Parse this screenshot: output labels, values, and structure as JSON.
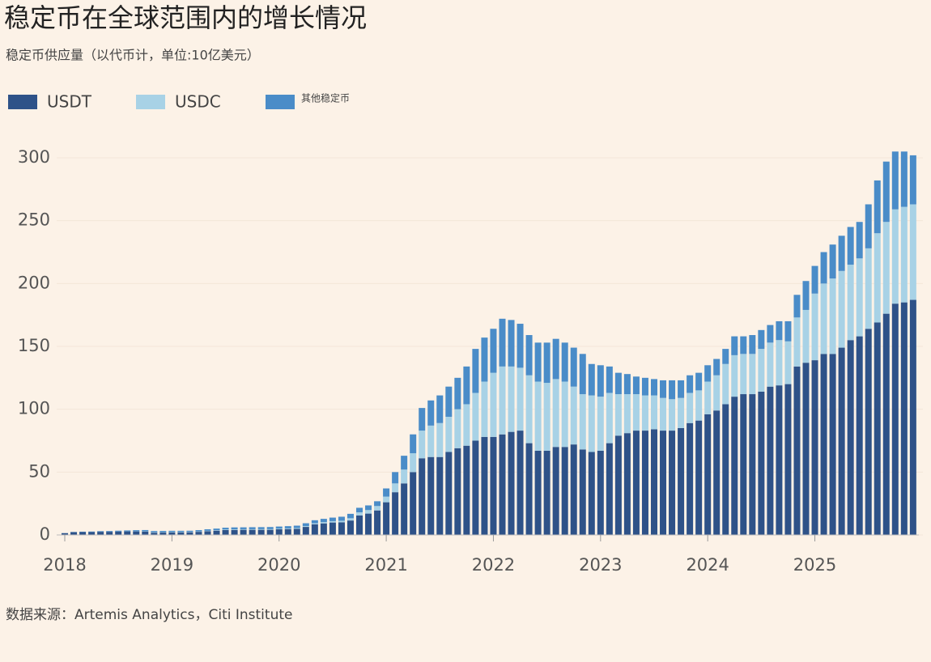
{
  "chart_data": {
    "type": "stacked_bar",
    "title": "稳定币在全球范围内的增长情况",
    "subtitle": "稳定币供应量（以代币计，单位:10亿美元）",
    "source": "数据来源：Artemis Analytics，Citi Institute",
    "categories": [
      "2018",
      null,
      null,
      null,
      null,
      null,
      null,
      null,
      null,
      null,
      null,
      null,
      "2019",
      null,
      null,
      null,
      null,
      null,
      null,
      null,
      null,
      null,
      null,
      null,
      "2020",
      null,
      null,
      null,
      null,
      null,
      null,
      null,
      null,
      null,
      null,
      null,
      "2021",
      null,
      null,
      null,
      null,
      null,
      null,
      null,
      null,
      null,
      null,
      null,
      "2022",
      null,
      null,
      null,
      null,
      null,
      null,
      null,
      null,
      null,
      null,
      null,
      "2023",
      null,
      null,
      null,
      null,
      null,
      null,
      null,
      null,
      null,
      null,
      null,
      "2024",
      null,
      null,
      null,
      null,
      null,
      null,
      null,
      null,
      null,
      null,
      null,
      "2025",
      null,
      null,
      null,
      null,
      null,
      null,
      null,
      null,
      null,
      null,
      null
    ],
    "series": [
      {
        "name": "USDT",
        "color": "#2e5288",
        "values": [
          1.4,
          2.2,
          2.3,
          2.3,
          2.5,
          2.5,
          2.7,
          2.8,
          2.8,
          2.7,
          1.8,
          1.9,
          2.0,
          2.0,
          2.1,
          2.5,
          3.0,
          3.4,
          3.9,
          4.0,
          4.1,
          4.1,
          4.1,
          4.1,
          4.5,
          4.7,
          4.9,
          6.4,
          8.5,
          9.2,
          9.9,
          10.0,
          11.5,
          15.5,
          17.0,
          19.5,
          26,
          34,
          41,
          50,
          61,
          62,
          62,
          66,
          69,
          71,
          75,
          78,
          78,
          80,
          82,
          83,
          73,
          67,
          67,
          70,
          70,
          72,
          68,
          66,
          67,
          73,
          79,
          81,
          83,
          83,
          84,
          83,
          83,
          85,
          89,
          91,
          96,
          99,
          104,
          110,
          112,
          112,
          114,
          118,
          119,
          120,
          134,
          137,
          139,
          144,
          144,
          149,
          155,
          158,
          164,
          169,
          176,
          184,
          185,
          187
        ]
      },
      {
        "name": "USDC",
        "color": "#a8d2e6",
        "values": [
          0,
          0,
          0,
          0,
          0,
          0,
          0,
          0,
          0.1,
          0.2,
          0.3,
          0.3,
          0.3,
          0.3,
          0.25,
          0.25,
          0.3,
          0.35,
          0.45,
          0.5,
          0.45,
          0.45,
          0.5,
          0.5,
          0.5,
          0.5,
          0.6,
          0.7,
          0.8,
          1.0,
          1.1,
          1.3,
          1.8,
          2.5,
          2.8,
          3.5,
          4.5,
          7,
          11,
          15,
          22,
          25,
          27,
          28,
          31,
          33,
          38,
          44,
          51,
          54,
          52,
          50,
          54,
          55,
          54,
          54,
          52,
          46,
          44,
          45,
          43,
          40,
          33,
          31,
          29,
          28,
          27,
          26,
          25,
          24,
          24,
          24,
          26,
          28,
          32,
          33,
          32,
          32,
          34,
          35,
          36,
          34,
          39,
          42,
          53,
          56,
          60,
          61,
          60,
          62,
          64,
          71,
          73,
          75,
          76,
          76
        ]
      },
      {
        "name": "其他稳定币",
        "color": "#4a8cc8",
        "values": [
          0.1,
          0.2,
          0.3,
          0.4,
          0.5,
          0.6,
          0.7,
          0.8,
          0.9,
          1.0,
          1.0,
          1.0,
          1.0,
          1.0,
          1.0,
          1.1,
          1.2,
          1.3,
          1.4,
          1.5,
          1.5,
          1.6,
          1.6,
          1.7,
          1.7,
          1.8,
          1.9,
          2.2,
          2.4,
          2.6,
          2.8,
          3.2,
          3.5,
          3.6,
          3.7,
          3.8,
          6.5,
          9,
          11,
          15,
          18,
          20,
          22,
          24,
          25,
          30,
          35,
          35,
          35,
          38,
          37,
          35,
          32,
          31,
          32,
          32,
          31,
          31,
          32,
          25,
          25,
          21,
          17,
          16,
          14,
          14,
          13,
          14,
          15,
          14,
          14,
          14,
          13,
          13,
          12,
          15,
          14,
          15,
          15,
          14,
          15,
          16,
          18,
          23,
          22,
          25,
          27,
          28,
          30,
          29,
          35,
          42,
          48,
          46,
          44,
          39
        ]
      }
    ],
    "ylim": [
      0,
      310
    ],
    "yticks": [
      0,
      50,
      100,
      150,
      200,
      250,
      300
    ],
    "grid": true
  }
}
